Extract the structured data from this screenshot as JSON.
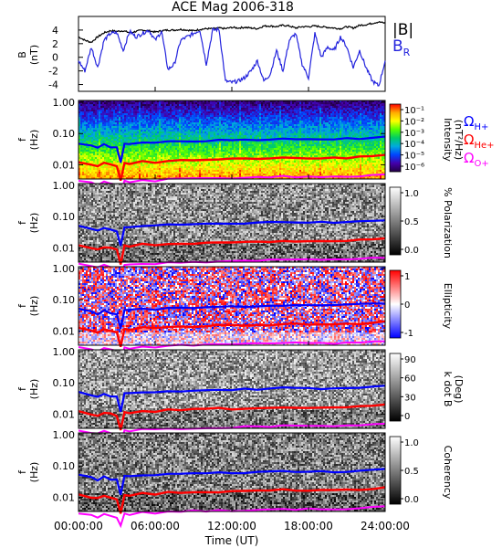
{
  "title": "ACE Mag 2006-318",
  "legend": {
    "b_total": "|B|",
    "b_r": "B",
    "b_r_sub": "R",
    "b_total_color": "#000000",
    "b_r_color": "#2222dd",
    "omega_h": "Ω",
    "omega_h_sub": "H+",
    "omega_he": "Ω",
    "omega_he_sub": "He+",
    "omega_o": "Ω",
    "omega_o_sub": "O+",
    "h_color": "#0000ff",
    "he_color": "#ff0000",
    "o_color": "#ff00ff"
  },
  "time_axis": {
    "label": "Time (UT)",
    "ticks": [
      "00:00:00",
      "06:00:00",
      "12:00:00",
      "18:00:00",
      "24:00:00"
    ],
    "range_hours": [
      0,
      24
    ]
  },
  "chart_data": [
    {
      "type": "line",
      "panel": "magnetic-field",
      "ylabel": "B",
      "yunit": "(nT)",
      "ylim": [
        -5,
        6
      ],
      "yticks": [
        "4",
        "2",
        "0",
        "-2",
        "-4"
      ],
      "series": [
        {
          "name": "|B|",
          "color": "#000000",
          "x": [
            0,
            0.5,
            1,
            1.5,
            2,
            2.5,
            3,
            3.5,
            4,
            4.5,
            5,
            5.5,
            6,
            6.5,
            7,
            7.5,
            8,
            8.5,
            9,
            9.5,
            10,
            10.5,
            11,
            11.5,
            12,
            12.5,
            13,
            13.5,
            14,
            14.5,
            15,
            15.5,
            16,
            16.5,
            17,
            17.5,
            18,
            18.5,
            19,
            19.5,
            20,
            20.5,
            21,
            21.5,
            22,
            22.5,
            23,
            23.5,
            24
          ],
          "values": [
            3.0,
            2.5,
            2.2,
            3.0,
            3.6,
            3.9,
            3.8,
            3.9,
            3.6,
            3.8,
            4.0,
            3.9,
            3.7,
            3.9,
            4.0,
            4.0,
            4.1,
            4.0,
            3.9,
            4.1,
            4.2,
            4.2,
            4.3,
            4.2,
            4.4,
            4.3,
            4.4,
            4.3,
            4.2,
            4.6,
            4.6,
            4.5,
            4.7,
            4.6,
            4.3,
            4.5,
            4.5,
            4.6,
            4.5,
            4.4,
            4.3,
            4.2,
            4.5,
            4.3,
            4.7,
            4.8,
            5.0,
            5.2,
            5.0
          ]
        },
        {
          "name": "B_R",
          "color": "#2222dd",
          "x": [
            0,
            0.5,
            1,
            1.5,
            2,
            2.5,
            3,
            3.5,
            4,
            4.5,
            5,
            5.5,
            6,
            6.5,
            7,
            7.5,
            8,
            8.5,
            9,
            9.5,
            10,
            10.5,
            11,
            11.5,
            12,
            12.5,
            13,
            13.5,
            14,
            14.5,
            15,
            15.5,
            16,
            16.5,
            17,
            17.5,
            18,
            18.5,
            19,
            19.5,
            20,
            20.5,
            21,
            21.5,
            22,
            22.5,
            23,
            23.5,
            24
          ],
          "values": [
            -0.5,
            -2.0,
            1.5,
            -1.5,
            2.5,
            3.5,
            3.6,
            1.0,
            3.8,
            3.0,
            3.5,
            4.0,
            2.5,
            3.8,
            -1.8,
            -1.0,
            2.5,
            3.0,
            3.5,
            4.0,
            -1.0,
            4.0,
            4.1,
            -3.5,
            -3.7,
            -3.5,
            -3.0,
            -2.0,
            -0.5,
            -3.5,
            -2.5,
            1.0,
            -2.0,
            2.5,
            3.5,
            -1.0,
            -3.0,
            3.5,
            0.0,
            1.5,
            1.0,
            3.0,
            1.5,
            -1.5,
            1.0,
            -1.5,
            -3.5,
            -4.2,
            -0.5
          ]
        }
      ]
    },
    {
      "type": "heatmap",
      "panel": "intensity",
      "ylabel": "f",
      "yunit": "(Hz)",
      "yscale": "log",
      "yticks": [
        "1.00",
        "0.10",
        "0.01"
      ],
      "colorbar": {
        "label": "Intensity",
        "unit": "(nT²/Hz)",
        "ticks": [
          "10⁻¹",
          "10⁻²",
          "10⁻³",
          "10⁻⁴",
          "10⁻⁵",
          "10⁻⁶"
        ],
        "colors": [
          "#ff0000",
          "#ffaa00",
          "#ffff00",
          "#55ff00",
          "#00cc66",
          "#00aadd",
          "#0044ff",
          "#4400aa",
          "#220044"
        ]
      }
    },
    {
      "type": "heatmap",
      "panel": "polarization",
      "ylabel": "f",
      "yunit": "(Hz)",
      "yscale": "log",
      "yticks": [
        "1.00",
        "0.10",
        "0.01"
      ],
      "colorbar": {
        "label": "% Polarization",
        "ticks": [
          "1.0",
          "0.5",
          "0.0"
        ],
        "colors": [
          "#ffffff",
          "#000000"
        ]
      }
    },
    {
      "type": "heatmap",
      "panel": "ellipticity",
      "ylabel": "f",
      "yunit": "(Hz)",
      "yscale": "log",
      "yticks": [
        "1.00",
        "0.10",
        "0.01"
      ],
      "colorbar": {
        "label": "Ellipticity",
        "ticks": [
          "1",
          "0",
          "-1"
        ],
        "colors": [
          "#ff0000",
          "#ffffff",
          "#0000ff"
        ]
      }
    },
    {
      "type": "heatmap",
      "panel": "k-dot-b",
      "ylabel": "f",
      "yunit": "(Hz)",
      "yscale": "log",
      "yticks": [
        "1.00",
        "0.10",
        "0.01"
      ],
      "colorbar": {
        "label": "k dot B",
        "unit": "(Deg)",
        "ticks": [
          "90",
          "60",
          "30",
          "0"
        ],
        "colors": [
          "#ffffff",
          "#000000"
        ]
      }
    },
    {
      "type": "heatmap",
      "panel": "coherency",
      "ylabel": "f",
      "yunit": "(Hz)",
      "yscale": "log",
      "yticks": [
        "1.00",
        "0.10",
        "0.01"
      ],
      "colorbar": {
        "label": "Coherency",
        "ticks": [
          "1.0",
          "0.5",
          "0.0"
        ],
        "colors": [
          "#ffffff",
          "#000000"
        ]
      }
    }
  ],
  "gyrofrequency_lines": {
    "x": [
      0,
      1,
      1.5,
      2,
      2.5,
      3,
      3.3,
      3.6,
      4,
      5,
      6,
      7,
      8,
      9,
      10,
      11,
      12,
      13,
      14,
      15,
      16,
      17,
      18,
      19,
      20,
      21,
      22,
      23,
      24
    ],
    "H+": [
      0.05,
      0.042,
      0.035,
      0.045,
      0.038,
      0.035,
      0.012,
      0.048,
      0.045,
      0.052,
      0.05,
      0.055,
      0.056,
      0.057,
      0.058,
      0.06,
      0.06,
      0.062,
      0.064,
      0.065,
      0.068,
      0.066,
      0.065,
      0.067,
      0.066,
      0.068,
      0.07,
      0.075,
      0.078
    ],
    "He+": [
      0.012,
      0.01,
      0.009,
      0.011,
      0.01,
      0.009,
      0.003,
      0.012,
      0.011,
      0.013,
      0.012,
      0.014,
      0.014,
      0.0142,
      0.0145,
      0.015,
      0.015,
      0.0155,
      0.016,
      0.016,
      0.017,
      0.0165,
      0.016,
      0.0168,
      0.0165,
      0.017,
      0.0175,
      0.019,
      0.02
    ],
    "O+": [
      0.0031,
      0.0026,
      0.0023,
      0.0028,
      0.0025,
      0.0023,
      0.0012,
      0.003,
      0.0028,
      0.0032,
      0.0031,
      0.0034,
      0.0035,
      0.0036,
      0.0036,
      0.0037,
      0.0037,
      0.0039,
      0.004,
      0.0041,
      0.0042,
      0.0041,
      0.0041,
      0.0042,
      0.0041,
      0.0042,
      0.0044,
      0.0047,
      0.0049
    ]
  }
}
